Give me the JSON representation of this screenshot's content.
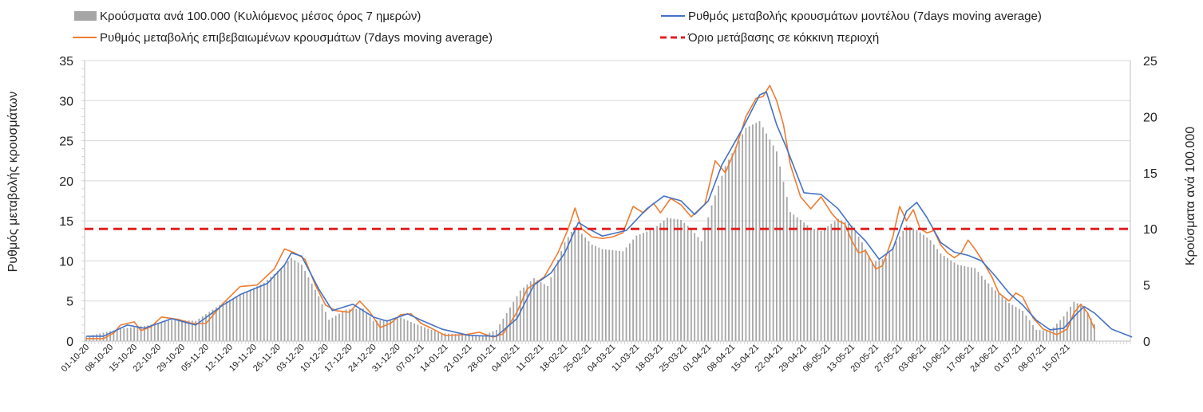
{
  "chart_data": {
    "type": "bar+line",
    "title": "",
    "ylabel_left": "Ρυθμός μεταβολής κρουσμάτων",
    "ylabel_right": "Κρούσματα ανά 100.000",
    "ylim_left": [
      0,
      35
    ],
    "ylim_right": [
      0,
      25
    ],
    "yticks_left": [
      "0",
      "5",
      "10",
      "15",
      "20",
      "25",
      "30",
      "35"
    ],
    "yticks_right": [
      "0",
      "5",
      "10",
      "15",
      "20",
      "25"
    ],
    "grid": true,
    "legend_position": "top",
    "x_start": "01-10-20",
    "x_days": 295,
    "xtick_labels": [
      "01-10-20",
      "08-10-20",
      "15-10-20",
      "22-10-20",
      "29-10-20",
      "05-11-20",
      "12-11-20",
      "19-11-20",
      "26-11-20",
      "03-12-20",
      "10-12-20",
      "17-12-20",
      "24-12-20",
      "31-12-20",
      "07-01-21",
      "14-01-21",
      "21-01-21",
      "28-01-21",
      "04-02-21",
      "11-02-21",
      "18-02-21",
      "25-02-21",
      "04-03-21",
      "11-03-21",
      "18-03-21",
      "25-03-21",
      "01-04-21",
      "08-04-21",
      "15-04-21",
      "22-04-21",
      "29-04-21",
      "06-05-21",
      "13-05-21",
      "20-05-21",
      "27-05-21",
      "03-06-21",
      "10-06-21",
      "17-06-21",
      "24-06-21",
      "01-07-21",
      "08-07-21",
      "15-07-21"
    ],
    "series": [
      {
        "name": "Κρούσματα ανά 100.000 (Κυλιόμενος μέσος όρος 7 ημερών)",
        "type": "bar",
        "axis": "right",
        "color": "#a6a6a6",
        "keypoints": [
          [
            0,
            0.4
          ],
          [
            10,
            1.1
          ],
          [
            18,
            1.4
          ],
          [
            25,
            1.9
          ],
          [
            32,
            1.8
          ],
          [
            40,
            3.4
          ],
          [
            47,
            4.4
          ],
          [
            52,
            5.2
          ],
          [
            57,
            6.5
          ],
          [
            60,
            7.4
          ],
          [
            63,
            6.8
          ],
          [
            68,
            4.0
          ],
          [
            71,
            1.9
          ],
          [
            76,
            2.8
          ],
          [
            81,
            2.9
          ],
          [
            84,
            1.8
          ],
          [
            88,
            1.9
          ],
          [
            92,
            2.1
          ],
          [
            95,
            1.7
          ],
          [
            100,
            1.1
          ],
          [
            104,
            0.7
          ],
          [
            110,
            0.6
          ],
          [
            116,
            0.5
          ],
          [
            120,
            1.0
          ],
          [
            127,
            4.5
          ],
          [
            131,
            5.6
          ],
          [
            135,
            4.9
          ],
          [
            140,
            8.8
          ],
          [
            143,
            10.2
          ],
          [
            148,
            8.6
          ],
          [
            151,
            8.2
          ],
          [
            157,
            8.0
          ],
          [
            161,
            9.4
          ],
          [
            166,
            10.0
          ],
          [
            170,
            11.0
          ],
          [
            174,
            10.8
          ],
          [
            177,
            10.0
          ],
          [
            180,
            8.9
          ],
          [
            183,
            12.1
          ],
          [
            187,
            15.6
          ],
          [
            193,
            19.0
          ],
          [
            197,
            19.6
          ],
          [
            199,
            18.5
          ],
          [
            202,
            16.9
          ],
          [
            206,
            11.5
          ],
          [
            212,
            10.1
          ],
          [
            215,
            9.8
          ],
          [
            220,
            10.9
          ],
          [
            224,
            10.3
          ],
          [
            227,
            8.8
          ],
          [
            230,
            7.0
          ],
          [
            234,
            7.4
          ],
          [
            240,
            10.3
          ],
          [
            243,
            9.9
          ],
          [
            247,
            9.0
          ],
          [
            250,
            7.8
          ],
          [
            255,
            6.8
          ],
          [
            260,
            6.5
          ],
          [
            265,
            4.8
          ],
          [
            270,
            3.4
          ],
          [
            274,
            2.7
          ],
          [
            278,
            1.0
          ],
          [
            282,
            0.9
          ],
          [
            286,
            2.2
          ],
          [
            289,
            3.5
          ],
          [
            292,
            3.1
          ],
          [
            295,
            1.5
          ]
        ]
      },
      {
        "name": "Ρυθμός μεταβολής κρουσμάτων μοντέλου (7days moving average)",
        "type": "line",
        "axis": "left",
        "color": "#4472c4",
        "keypoints": [
          [
            0,
            0.6
          ],
          [
            5,
            0.6
          ],
          [
            12,
            2.0
          ],
          [
            17,
            1.6
          ],
          [
            25,
            2.8
          ],
          [
            32,
            2.0
          ],
          [
            40,
            4.5
          ],
          [
            45,
            5.8
          ],
          [
            53,
            7.2
          ],
          [
            58,
            9.5
          ],
          [
            60,
            11.0
          ],
          [
            63,
            10.6
          ],
          [
            68,
            6.5
          ],
          [
            72,
            3.8
          ],
          [
            78,
            4.6
          ],
          [
            84,
            3.0
          ],
          [
            88,
            2.5
          ],
          [
            94,
            3.4
          ],
          [
            98,
            2.6
          ],
          [
            104,
            1.5
          ],
          [
            112,
            0.7
          ],
          [
            120,
            0.6
          ],
          [
            126,
            2.8
          ],
          [
            131,
            7.0
          ],
          [
            136,
            8.5
          ],
          [
            140,
            11.0
          ],
          [
            144,
            14.8
          ],
          [
            147,
            14.0
          ],
          [
            151,
            13.1
          ],
          [
            158,
            13.8
          ],
          [
            164,
            16.5
          ],
          [
            169,
            18.1
          ],
          [
            174,
            17.5
          ],
          [
            178,
            15.8
          ],
          [
            182,
            17.5
          ],
          [
            186,
            22.0
          ],
          [
            192,
            26.5
          ],
          [
            197,
            30.7
          ],
          [
            199,
            31.1
          ],
          [
            202,
            27.0
          ],
          [
            205,
            24.0
          ],
          [
            210,
            18.5
          ],
          [
            215,
            18.3
          ],
          [
            220,
            16.5
          ],
          [
            224,
            14.2
          ],
          [
            228,
            12.5
          ],
          [
            232,
            10.2
          ],
          [
            236,
            11.5
          ],
          [
            240,
            16.2
          ],
          [
            243,
            17.3
          ],
          [
            246,
            15.4
          ],
          [
            250,
            12.3
          ],
          [
            254,
            11.1
          ],
          [
            258,
            10.7
          ],
          [
            262,
            10.0
          ],
          [
            266,
            8.1
          ],
          [
            270,
            6.0
          ],
          [
            274,
            4.5
          ],
          [
            278,
            2.6
          ],
          [
            282,
            1.4
          ],
          [
            286,
            1.6
          ],
          [
            290,
            3.5
          ],
          [
            292,
            4.3
          ],
          [
            295,
            3.5
          ],
          [
            300,
            1.5
          ],
          [
            306,
            0.5
          ]
        ]
      },
      {
        "name": "Ρυθμός μεταβολής επιβεβαιωμένων κρουσμάτων (7days moving average)",
        "type": "line",
        "axis": "left",
        "color": "#ed7d31",
        "keypoints": [
          [
            0,
            0.3
          ],
          [
            5,
            0.3
          ],
          [
            8,
            1.0
          ],
          [
            10,
            2.0
          ],
          [
            14,
            2.4
          ],
          [
            16,
            1.3
          ],
          [
            19,
            1.8
          ],
          [
            22,
            3.0
          ],
          [
            27,
            2.7
          ],
          [
            31,
            2.2
          ],
          [
            35,
            2.2
          ],
          [
            40,
            4.7
          ],
          [
            45,
            6.8
          ],
          [
            50,
            7.0
          ],
          [
            55,
            9.0
          ],
          [
            58,
            11.5
          ],
          [
            61,
            11.0
          ],
          [
            64,
            10.2
          ],
          [
            67,
            7.0
          ],
          [
            70,
            4.5
          ],
          [
            73,
            3.8
          ],
          [
            77,
            3.6
          ],
          [
            80,
            5.0
          ],
          [
            83,
            3.6
          ],
          [
            86,
            1.7
          ],
          [
            89,
            2.2
          ],
          [
            92,
            3.3
          ],
          [
            95,
            3.4
          ],
          [
            98,
            2.2
          ],
          [
            101,
            1.6
          ],
          [
            105,
            0.7
          ],
          [
            111,
            0.8
          ],
          [
            115,
            1.1
          ],
          [
            119,
            0.5
          ],
          [
            122,
            0.9
          ],
          [
            126,
            3.6
          ],
          [
            129,
            6.5
          ],
          [
            134,
            8.0
          ],
          [
            138,
            11.0
          ],
          [
            141,
            14.0
          ],
          [
            143,
            16.6
          ],
          [
            145,
            14.0
          ],
          [
            148,
            13.0
          ],
          [
            151,
            12.8
          ],
          [
            154,
            13.0
          ],
          [
            157,
            13.5
          ],
          [
            160,
            16.8
          ],
          [
            163,
            16.0
          ],
          [
            166,
            17.2
          ],
          [
            168,
            16.0
          ],
          [
            171,
            17.8
          ],
          [
            174,
            17.0
          ],
          [
            177,
            15.5
          ],
          [
            181,
            17.1
          ],
          [
            184,
            22.5
          ],
          [
            187,
            21.0
          ],
          [
            190,
            24.0
          ],
          [
            193,
            28.0
          ],
          [
            196,
            30.3
          ],
          [
            198,
            30.5
          ],
          [
            200,
            31.9
          ],
          [
            202,
            30.0
          ],
          [
            204,
            27.0
          ],
          [
            206,
            22.0
          ],
          [
            209,
            18.0
          ],
          [
            212,
            16.5
          ],
          [
            215,
            18.0
          ],
          [
            218,
            16.0
          ],
          [
            220,
            15.0
          ],
          [
            222,
            14.6
          ],
          [
            224,
            12.5
          ],
          [
            226,
            11.0
          ],
          [
            228,
            11.3
          ],
          [
            231,
            9.0
          ],
          [
            233,
            9.4
          ],
          [
            236,
            13.0
          ],
          [
            238,
            16.8
          ],
          [
            240,
            15.0
          ],
          [
            242,
            16.4
          ],
          [
            244,
            14.0
          ],
          [
            246,
            13.5
          ],
          [
            248,
            13.8
          ],
          [
            250,
            12.0
          ],
          [
            252,
            11.0
          ],
          [
            254,
            10.4
          ],
          [
            256,
            11.0
          ],
          [
            258,
            12.6
          ],
          [
            260,
            11.5
          ],
          [
            262,
            10.2
          ],
          [
            265,
            8.0
          ],
          [
            267,
            6.0
          ],
          [
            270,
            5.0
          ],
          [
            272,
            6.0
          ],
          [
            274,
            5.5
          ],
          [
            277,
            2.9
          ],
          [
            280,
            1.5
          ],
          [
            284,
            0.8
          ],
          [
            287,
            1.5
          ],
          [
            289,
            3.5
          ],
          [
            291,
            4.6
          ],
          [
            293,
            3.5
          ],
          [
            295,
            1.5
          ]
        ]
      },
      {
        "name": "Όριο μετάβασης σε κόκκινη περιοχή",
        "type": "hline",
        "axis": "left",
        "color": "#e02020",
        "value": 14
      }
    ]
  }
}
